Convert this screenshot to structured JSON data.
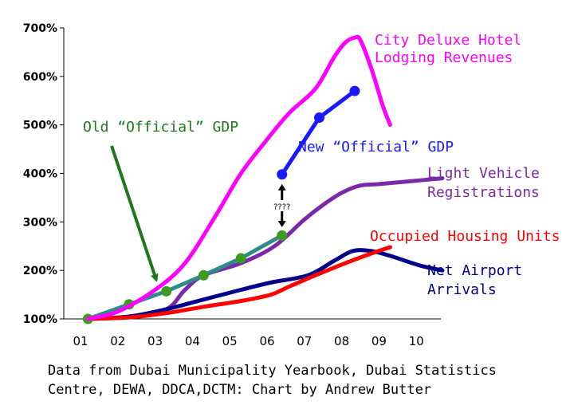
{
  "chart_data": {
    "type": "line",
    "title": "",
    "xlabel": "",
    "ylabel": "",
    "categories": [
      "01",
      "02",
      "03",
      "04",
      "05",
      "06",
      "07",
      "08",
      "09",
      "10"
    ],
    "x_range": [
      1,
      10
    ],
    "ylim": [
      100,
      700
    ],
    "y_ticks": [
      "100%",
      "200%",
      "300%",
      "400%",
      "500%",
      "600%",
      "700%"
    ],
    "grid": false,
    "series": [
      {
        "name": "City Deluxe Hotel Lodging Revenues",
        "label_lines": [
          "City Deluxe Hotel",
          "Lodging Revenues"
        ],
        "color": "#ff00ff",
        "markers": false,
        "points": [
          [
            1.2,
            100
          ],
          [
            2,
            115
          ],
          [
            3,
            160
          ],
          [
            3.8,
            215
          ],
          [
            4.6,
            310
          ],
          [
            5.3,
            400
          ],
          [
            6,
            470
          ],
          [
            6.6,
            525
          ],
          [
            7.3,
            575
          ],
          [
            7.8,
            640
          ],
          [
            8.1,
            670
          ],
          [
            8.35,
            680
          ],
          [
            8.5,
            675
          ],
          [
            8.8,
            615
          ],
          [
            9.1,
            540
          ],
          [
            9.3,
            500
          ]
        ]
      },
      {
        "name": "New “Official” GDP",
        "label_lines": [
          "New “Official” GDP"
        ],
        "color": "#1a1aff",
        "markers": true,
        "points": [
          [
            6.4,
            398
          ],
          [
            7.4,
            515
          ],
          [
            8.35,
            570
          ]
        ]
      },
      {
        "name": "Old “Official” GDP",
        "label_lines": [
          "Old “Official” GDP"
        ],
        "color": "#2e8b8b",
        "marker_color": "#3c9a1e",
        "markers": true,
        "points": [
          [
            1.2,
            100
          ],
          [
            2.3,
            130
          ],
          [
            3.3,
            157
          ],
          [
            4.3,
            190
          ],
          [
            5.3,
            225
          ],
          [
            6.4,
            272
          ]
        ]
      },
      {
        "name": "Light Vehicle Registrations",
        "label_lines": [
          "Light Vehicle",
          "Registrations"
        ],
        "color": "#7a2aa8",
        "markers": false,
        "points": [
          [
            1.2,
            100
          ],
          [
            2.3,
            105
          ],
          [
            3.3,
            120
          ],
          [
            3.8,
            160
          ],
          [
            4.3,
            190
          ],
          [
            5.3,
            215
          ],
          [
            6.2,
            250
          ],
          [
            7,
            305
          ],
          [
            7.5,
            335
          ],
          [
            8,
            360
          ],
          [
            8.5,
            375
          ],
          [
            9,
            378
          ],
          [
            10,
            385
          ],
          [
            10.7,
            390
          ]
        ]
      },
      {
        "name": "Occupied Housing Units",
        "label_lines": [
          "Occupied Housing Units"
        ],
        "color": "#ff0000",
        "markers": false,
        "points": [
          [
            1.2,
            100
          ],
          [
            2.3,
            103
          ],
          [
            3.3,
            112
          ],
          [
            4.3,
            125
          ],
          [
            5.3,
            137
          ],
          [
            6.1,
            150
          ],
          [
            6.6,
            167
          ],
          [
            7.3,
            190
          ],
          [
            8.1,
            215
          ],
          [
            8.8,
            235
          ],
          [
            9.3,
            248
          ]
        ]
      },
      {
        "name": "Net Airport Arrivals",
        "label_lines": [
          "Net Airport",
          "Arrivals"
        ],
        "color": "#00008b",
        "markers": false,
        "points": [
          [
            1.2,
            100
          ],
          [
            2.3,
            105
          ],
          [
            3.3,
            120
          ],
          [
            4.3,
            140
          ],
          [
            5.3,
            160
          ],
          [
            6.1,
            175
          ],
          [
            7.1,
            190
          ],
          [
            7.8,
            220
          ],
          [
            8.3,
            240
          ],
          [
            8.8,
            240
          ],
          [
            9.3,
            230
          ],
          [
            10.1,
            210
          ],
          [
            10.7,
            200
          ]
        ]
      }
    ],
    "annotations": {
      "gap_marker": "????"
    },
    "source_note": [
      "Data from Dubai Municipality Yearbook, Dubai Statistics",
      "Centre, DEWA, DDCA,DCTM: Chart by Andrew Butter"
    ]
  }
}
